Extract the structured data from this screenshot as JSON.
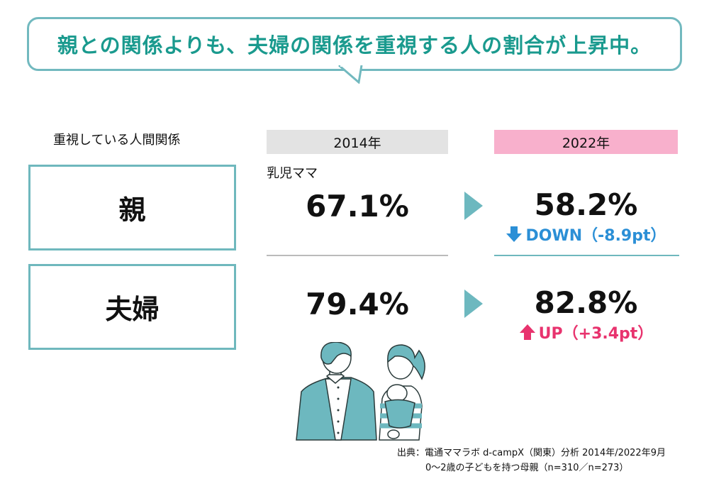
{
  "headline": "親との関係よりも、夫婦の関係を重視する人の割合が上昇中。",
  "table": {
    "row_header_label": "重視している人間関係",
    "columns": [
      {
        "label": "2014年",
        "color": "#e3e3e3"
      },
      {
        "label": "2022年",
        "color": "#f8b0cc"
      }
    ],
    "subgroup_label": "乳児ママ",
    "rows": [
      {
        "label": "親",
        "value_2014": "67.1%",
        "value_2022": "58.2%",
        "change_direction": "down",
        "change_label": "DOWN（-8.9pt）",
        "change_color": "#2b8fd6"
      },
      {
        "label": "夫婦",
        "value_2014": "79.4%",
        "value_2022": "82.8%",
        "change_direction": "up",
        "change_label": "UP（+3.4pt）",
        "change_color": "#e8336e"
      }
    ]
  },
  "colors": {
    "accent": "#6fb8bd",
    "headline": "#1a9a8e"
  },
  "illustration": "couple-with-baby-illustration",
  "source": {
    "line1": "出典：電通ママラボ d-campX（関東）分析 2014年/2022年9月",
    "line2": "0〜2歳の子どもを持つ母親（n=310／n=273）"
  }
}
